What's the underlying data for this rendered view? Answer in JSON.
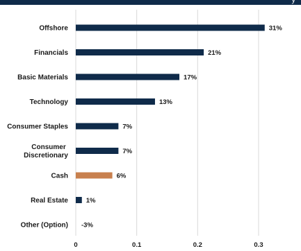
{
  "header": {
    "fragment_text": "y"
  },
  "chart_data": {
    "type": "bar",
    "orientation": "horizontal",
    "categories": [
      "Offshore",
      "Financials",
      "Basic Materials",
      "Technology",
      "Consumer Staples",
      "Consumer Discretionary",
      "Cash",
      "Real Estate",
      "Other (Option)"
    ],
    "category_lines": [
      [
        "Offshore"
      ],
      [
        "Financials"
      ],
      [
        "Basic Materials"
      ],
      [
        "Technology"
      ],
      [
        "Consumer Staples"
      ],
      [
        "Consumer",
        "Discretionary"
      ],
      [
        "Cash"
      ],
      [
        "Real Estate"
      ],
      [
        "Other (Option)"
      ]
    ],
    "values": [
      0.31,
      0.21,
      0.17,
      0.13,
      0.07,
      0.07,
      0.06,
      0.01,
      -0.03
    ],
    "value_labels": [
      "31%",
      "21%",
      "17%",
      "13%",
      "7%",
      "7%",
      "6%",
      "1%",
      "-3%"
    ],
    "xlim": [
      0,
      0.3
    ],
    "xticks": [
      0,
      0.1,
      0.2,
      0.3
    ],
    "xtick_labels": [
      "0",
      "0.1",
      "0.2",
      "0.3"
    ],
    "grid": "vertical",
    "colors": {
      "default": "#0f2b4a",
      "highlight": "#c8804e",
      "highlight_category": "Cash"
    }
  }
}
